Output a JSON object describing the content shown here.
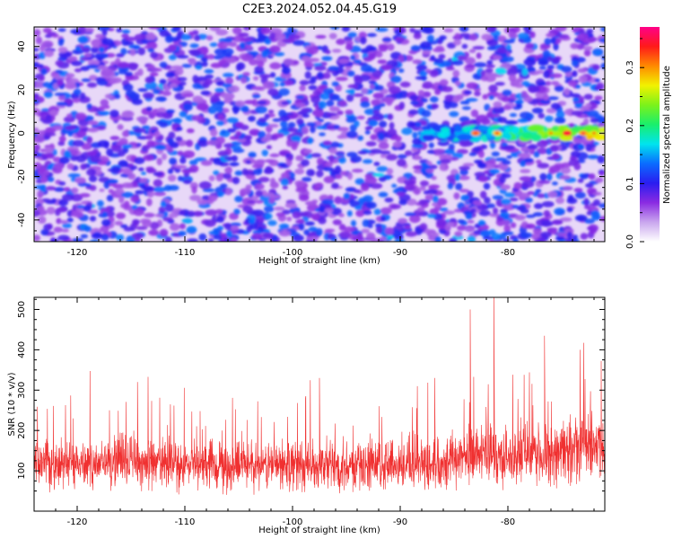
{
  "page_title": "C2E3.2024.052.04.45.G19",
  "chart_data": [
    {
      "type": "heatmap",
      "xlabel": "Height of straight line (km)",
      "ylabel": "Frequency (Hz)",
      "xlim": [
        -124,
        -71
      ],
      "ylim": [
        -50,
        49
      ],
      "x_ticks": [
        -120,
        -110,
        -100,
        -90,
        -80
      ],
      "y_ticks": [
        -40,
        -20,
        0,
        20,
        40
      ],
      "colorbar": {
        "label": "Normalized spectral amplitude",
        "range": [
          0,
          0.37
        ],
        "ticks": [
          "0.0",
          "0.1",
          "0.2",
          "0.3"
        ],
        "colors": [
          "#ffffff",
          "#c9a6ee",
          "#8a2be2",
          "#2a1df0",
          "#0a6cff",
          "#00e4ee",
          "#19ef6c",
          "#7cf21a",
          "#f2f200",
          "#ff8a00",
          "#ff1a1a",
          "#ff0088"
        ]
      },
      "signal_band": {
        "frequency_hz": 0,
        "onset_height_km": -88,
        "peak_amplitude": 0.35
      }
    },
    {
      "type": "line",
      "xlabel": "Height of straight line (km)",
      "ylabel": "SNR (10 * v/v)",
      "xlim": [
        -124,
        -71
      ],
      "ylim": [
        0,
        530
      ],
      "x_ticks": [
        -120,
        -110,
        -100,
        -90,
        -80
      ],
      "y_ticks": [
        100,
        200,
        300,
        400,
        500
      ],
      "line_color": "#f03030",
      "series": [
        {
          "x": [
            -124,
            -120,
            -115,
            -110,
            -105,
            -100,
            -95,
            -90,
            -86,
            -83,
            -80,
            -76,
            -71
          ],
          "y": [
            115,
            120,
            125,
            110,
            112,
            115,
            110,
            118,
            125,
            140,
            135,
            140,
            170
          ]
        }
      ],
      "peaks": [
        {
          "x": -83.5,
          "y": 500
        },
        {
          "x": -81.3,
          "y": 540
        },
        {
          "x": -76.6,
          "y": 435
        },
        {
          "x": -73.3,
          "y": 400
        },
        {
          "x": -86.8,
          "y": 330
        },
        {
          "x": -97.5,
          "y": 330
        },
        {
          "x": -114.4,
          "y": 320
        }
      ]
    }
  ]
}
